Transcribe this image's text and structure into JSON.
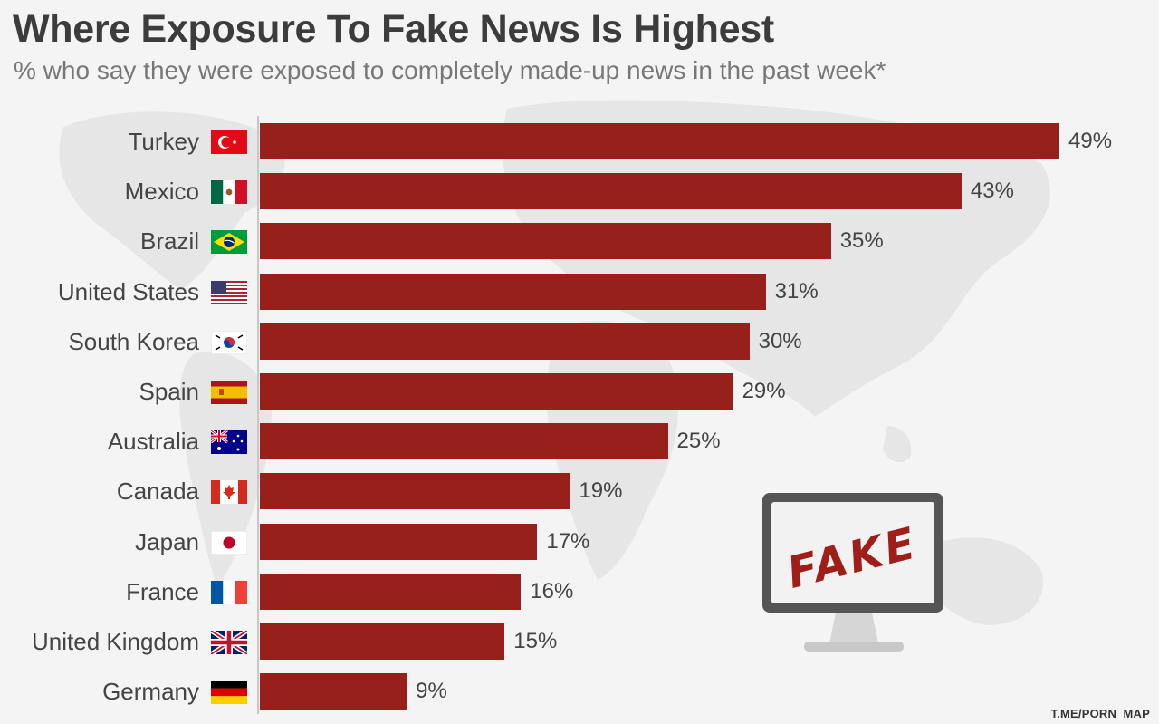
{
  "title": "Where Exposure To Fake News Is Highest",
  "subtitle": "% who say they were exposed to completely made-up news in the past week*",
  "credit": "T.ME/PORN_MAP",
  "illustration_text": "FAKE",
  "colors": {
    "bar": "#98201b",
    "background": "#f4f4f4",
    "title": "#3c3c3c",
    "subtitle": "#777777"
  },
  "chart_data": {
    "type": "bar",
    "orientation": "horizontal",
    "title": "Where Exposure To Fake News Is Highest",
    "subtitle": "% who say they were exposed to completely made-up news in the past week*",
    "xlim": [
      0,
      49
    ],
    "grid": false,
    "categories": [
      "Turkey",
      "Mexico",
      "Brazil",
      "United States",
      "South Korea",
      "Spain",
      "Australia",
      "Canada",
      "Japan",
      "France",
      "United Kingdom",
      "Germany"
    ],
    "values": [
      49,
      43,
      35,
      31,
      30,
      29,
      25,
      19,
      17,
      16,
      15,
      9
    ],
    "value_labels": [
      "49%",
      "43%",
      "35%",
      "31%",
      "30%",
      "29%",
      "25%",
      "19%",
      "17%",
      "16%",
      "15%",
      "9%"
    ],
    "flags": [
      "turkey-flag-icon",
      "mexico-flag-icon",
      "brazil-flag-icon",
      "usa-flag-icon",
      "south-korea-flag-icon",
      "spain-flag-icon",
      "australia-flag-icon",
      "canada-flag-icon",
      "japan-flag-icon",
      "france-flag-icon",
      "uk-flag-icon",
      "germany-flag-icon"
    ]
  }
}
